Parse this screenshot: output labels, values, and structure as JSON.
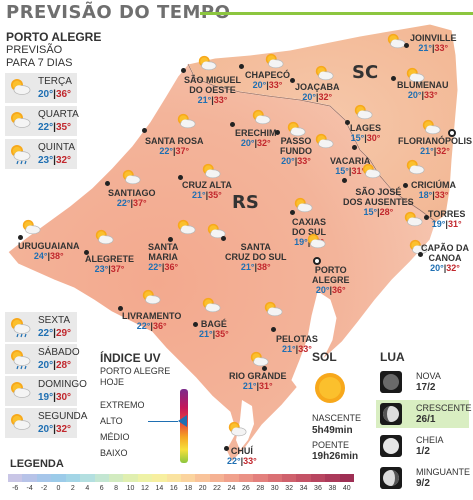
{
  "header": {
    "title": "PREVISÃO DO TEMPO"
  },
  "sidebar": {
    "city": "PORTO ALEGRE",
    "subtitle_1": "PREVISÃO",
    "subtitle_2": "PARA 7 DIAS",
    "days": [
      {
        "name": "TERÇA",
        "min": "20°",
        "max": "36°",
        "icon": "sun-cloud-icon"
      },
      {
        "name": "QUARTA",
        "min": "22°",
        "max": "35°",
        "icon": "sun-cloud-icon"
      },
      {
        "name": "QUINTA",
        "min": "23°",
        "max": "32°",
        "icon": "sun-cloud-rain-icon"
      },
      {
        "name": "SEXTA",
        "min": "22°",
        "max": "29°",
        "icon": "sun-cloud-rain-icon"
      },
      {
        "name": "SÁBADO",
        "min": "20°",
        "max": "28°",
        "icon": "sun-cloud-rain-icon"
      },
      {
        "name": "DOMINGO",
        "min": "19°",
        "max": "30°",
        "icon": "sun-cloud-icon"
      },
      {
        "name": "SEGUNDA",
        "min": "20°",
        "max": "32°",
        "icon": "sun-cloud-icon"
      }
    ]
  },
  "map": {
    "states": {
      "rs": "RS",
      "sc": "SC"
    },
    "cities": [
      {
        "id": "joinville",
        "l1": "JOINVILLE",
        "l2": "",
        "min": "21°",
        "max": "33°"
      },
      {
        "id": "sao-miguel",
        "l1": "SÃO MIGUEL",
        "l2": "DO OESTE",
        "min": "21°",
        "max": "33°"
      },
      {
        "id": "chapeco",
        "l1": "CHAPECÓ",
        "l2": "",
        "min": "20°",
        "max": "33°"
      },
      {
        "id": "joacaba",
        "l1": "JOAÇABA",
        "l2": "",
        "min": "20°",
        "max": "32°"
      },
      {
        "id": "blumenau",
        "l1": "BLUMENAU",
        "l2": "",
        "min": "20°",
        "max": "33°"
      },
      {
        "id": "lages",
        "l1": "LAGES",
        "l2": "",
        "min": "15°",
        "max": "30°"
      },
      {
        "id": "florianopolis",
        "l1": "FLORIANÓPOLIS",
        "l2": "",
        "min": "21°",
        "max": "32°"
      },
      {
        "id": "santa-rosa",
        "l1": "SANTA ROSA",
        "l2": "",
        "min": "22°",
        "max": "37°"
      },
      {
        "id": "erechim",
        "l1": "ERECHIM",
        "l2": "",
        "min": "20°",
        "max": "32°"
      },
      {
        "id": "passo-fundo",
        "l1": "PASSO",
        "l2": "FUNDO",
        "min": "20°",
        "max": "33°"
      },
      {
        "id": "vacaria",
        "l1": "VACARIA",
        "l2": "",
        "min": "15°",
        "max": "31°"
      },
      {
        "id": "criciuma",
        "l1": "CRICIÚMA",
        "l2": "",
        "min": "18°",
        "max": "33°"
      },
      {
        "id": "sao-jose",
        "l1": "SÃO JOSÉ",
        "l2": "DOS AUSENTES",
        "min": "15°",
        "max": "28°"
      },
      {
        "id": "santiago",
        "l1": "SANTIAGO",
        "l2": "",
        "min": "22°",
        "max": "37°"
      },
      {
        "id": "cruz-alta",
        "l1": "CRUZ ALTA",
        "l2": "",
        "min": "21°",
        "max": "35°"
      },
      {
        "id": "uruguaiana",
        "l1": "URUGUAIANA",
        "l2": "",
        "min": "24°",
        "max": "38°"
      },
      {
        "id": "caxias",
        "l1": "CAXIAS",
        "l2": "DO SUL",
        "min": "19°",
        "max": "32°"
      },
      {
        "id": "torres",
        "l1": "TORRES",
        "l2": "",
        "min": "19°",
        "max": "31°"
      },
      {
        "id": "alegrete",
        "l1": "ALEGRETE",
        "l2": "",
        "min": "23°",
        "max": "37°"
      },
      {
        "id": "santa-maria",
        "l1": "SANTA",
        "l2": "MARIA",
        "min": "22°",
        "max": "36°"
      },
      {
        "id": "santa-cruz",
        "l1": "SANTA",
        "l2": "CRUZ DO SUL",
        "min": "21°",
        "max": "38°"
      },
      {
        "id": "capao",
        "l1": "CAPÃO DA",
        "l2": "CANOA",
        "min": "20°",
        "max": "32°"
      },
      {
        "id": "porto-alegre",
        "l1": "PORTO",
        "l2": "ALEGRE",
        "min": "20°",
        "max": "36°"
      },
      {
        "id": "livramento",
        "l1": "LIVRAMENTO",
        "l2": "",
        "min": "22°",
        "max": "36°"
      },
      {
        "id": "bage",
        "l1": "BAGÉ",
        "l2": "",
        "min": "21°",
        "max": "35°"
      },
      {
        "id": "pelotas",
        "l1": "PELOTAS",
        "l2": "",
        "min": "21°",
        "max": "33°"
      },
      {
        "id": "rio-grande",
        "l1": "RIO GRANDE",
        "l2": "",
        "min": "21°",
        "max": "31°"
      },
      {
        "id": "chui",
        "l1": "CHUÍ",
        "l2": "",
        "min": "22°",
        "max": "33°"
      }
    ]
  },
  "uv": {
    "title": "ÍNDICE UV",
    "sub_1": "PORTO ALEGRE",
    "sub_2": "HOJE",
    "levels": [
      "EXTREMO",
      "ALTO",
      "MÉDIO",
      "BAIXO"
    ],
    "current_level": "ALTO"
  },
  "sun": {
    "title": "SOL",
    "sunrise_label": "NASCENTE",
    "sunrise": "5h49min",
    "sunset_label": "POENTE",
    "sunset": "19h26min"
  },
  "moon": {
    "title": "LUA",
    "phases": [
      {
        "name": "NOVA",
        "date": "17/2",
        "active": false
      },
      {
        "name": "CRESCENTE",
        "date": "26/1",
        "active": true
      },
      {
        "name": "CHEIA",
        "date": "1/2",
        "active": false
      },
      {
        "name": "MINGUANTE",
        "date": "9/2",
        "active": false
      }
    ]
  },
  "legend": {
    "title": "LEGENDA",
    "ticks": [
      "-6",
      "-4",
      "-2",
      "0",
      "2",
      "4",
      "6",
      "8",
      "10",
      "12",
      "14",
      "16",
      "18",
      "20",
      "22",
      "24",
      "26",
      "28",
      "30",
      "32",
      "34",
      "36",
      "38",
      "40"
    ],
    "colors": [
      "#c9c6e6",
      "#b7c3e8",
      "#a6c6ea",
      "#9ccbe9",
      "#a3d5e6",
      "#b3dfe0",
      "#c3e6d2",
      "#d2ebc0",
      "#e0efb0",
      "#eef2a6",
      "#f7efa0",
      "#fae3a0",
      "#fbd49e",
      "#f9c39a",
      "#f5b293",
      "#f0a18c",
      "#ea9185",
      "#e3807d",
      "#da7074",
      "#cf616c",
      "#c45366",
      "#b84660",
      "#ab3a5a",
      "#9e2f54"
    ]
  }
}
